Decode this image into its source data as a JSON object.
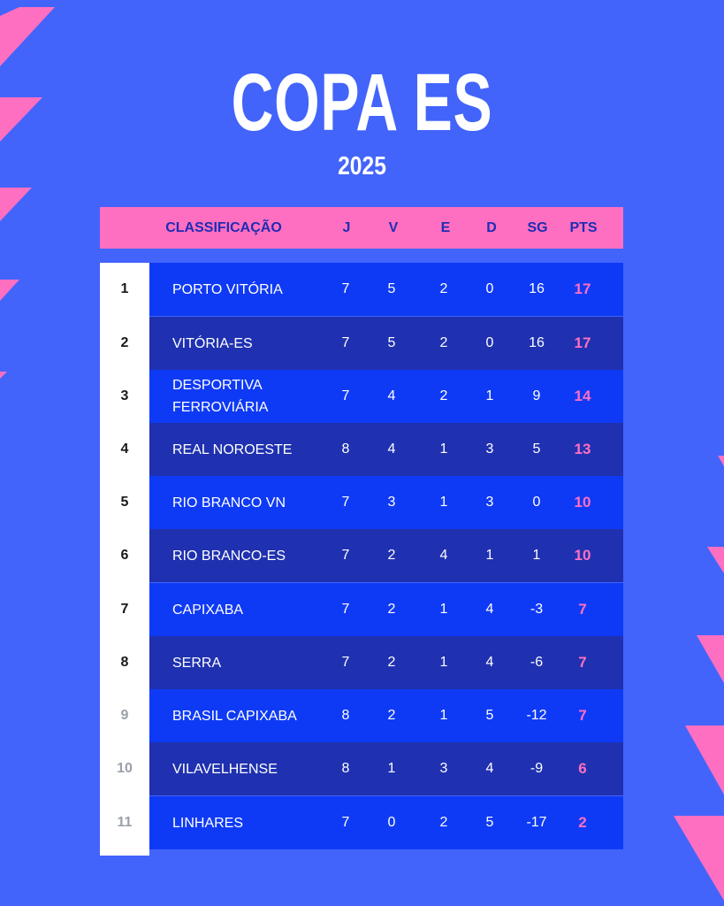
{
  "title": "COPA ES",
  "year": "2025",
  "header": {
    "label": "CLASSIFICAÇÃO",
    "j": "J",
    "v": "V",
    "e": "E",
    "d": "D",
    "sg": "SG",
    "pts": "PTS"
  },
  "rows": [
    {
      "pos": "1",
      "team": "PORTO VITÓRIA",
      "j": "7",
      "v": "5",
      "e": "2",
      "d": "0",
      "sg": "16",
      "pts": "17"
    },
    {
      "pos": "2",
      "team": "VITÓRIA-ES",
      "j": "7",
      "v": "5",
      "e": "2",
      "d": "0",
      "sg": "16",
      "pts": "17"
    },
    {
      "pos": "3",
      "team": "DESPORTIVA FERROVIÁRIA",
      "j": "7",
      "v": "4",
      "e": "2",
      "d": "1",
      "sg": "9",
      "pts": "14"
    },
    {
      "pos": "4",
      "team": "REAL NOROESTE",
      "j": "8",
      "v": "4",
      "e": "1",
      "d": "3",
      "sg": "5",
      "pts": "13"
    },
    {
      "pos": "5",
      "team": "RIO BRANCO VN",
      "j": "7",
      "v": "3",
      "e": "1",
      "d": "3",
      "sg": "0",
      "pts": "10"
    },
    {
      "pos": "6",
      "team": "RIO BRANCO-ES",
      "j": "7",
      "v": "2",
      "e": "4",
      "d": "1",
      "sg": "1",
      "pts": "10"
    },
    {
      "pos": "7",
      "team": "CAPIXABA",
      "j": "7",
      "v": "2",
      "e": "1",
      "d": "4",
      "sg": "-3",
      "pts": "7"
    },
    {
      "pos": "8",
      "team": "SERRA",
      "j": "7",
      "v": "2",
      "e": "1",
      "d": "4",
      "sg": "-6",
      "pts": "7"
    },
    {
      "pos": "9",
      "team": "BRASIL CAPIXABA",
      "j": "8",
      "v": "2",
      "e": "1",
      "d": "5",
      "sg": "-12",
      "pts": "7"
    },
    {
      "pos": "10",
      "team": "VILAVELHENSE",
      "j": "8",
      "v": "1",
      "e": "3",
      "d": "4",
      "sg": "-9",
      "pts": "6"
    },
    {
      "pos": "11",
      "team": "LINHARES",
      "j": "7",
      "v": "0",
      "e": "2",
      "d": "5",
      "sg": "-17",
      "pts": "2"
    }
  ],
  "colors": {
    "background": "#4264fb",
    "accent_pink": "#ff6fc1",
    "row_light": "#0f3af5",
    "row_dark": "#1f31b0"
  }
}
